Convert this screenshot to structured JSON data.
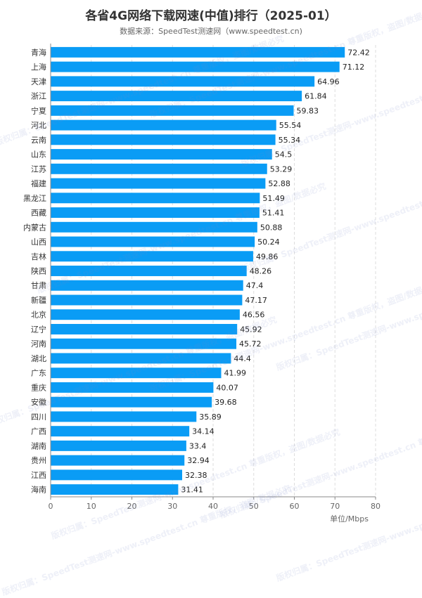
{
  "chart_data": {
    "type": "bar",
    "orientation": "horizontal",
    "title": "各省4G网络下载网速(中值)排行（2025-01）",
    "subtitle": "数据来源：SpeedTest测速网（www.speedtest.cn)",
    "unit_label": "单位/Mbps",
    "categories": [
      "青海",
      "上海",
      "天津",
      "浙江",
      "宁夏",
      "河北",
      "云南",
      "山东",
      "江苏",
      "福建",
      "黑龙江",
      "西藏",
      "内蒙古",
      "山西",
      "吉林",
      "陕西",
      "甘肃",
      "新疆",
      "北京",
      "辽宁",
      "河南",
      "湖北",
      "广东",
      "重庆",
      "安徽",
      "四川",
      "广西",
      "湖南",
      "贵州",
      "江西",
      "海南"
    ],
    "values": [
      72.42,
      71.12,
      64.96,
      61.84,
      59.83,
      55.54,
      55.34,
      54.5,
      53.29,
      52.88,
      51.49,
      51.41,
      50.88,
      50.24,
      49.86,
      48.26,
      47.4,
      47.17,
      46.56,
      45.92,
      45.72,
      44.4,
      41.99,
      40.07,
      39.68,
      35.89,
      34.14,
      33.4,
      32.94,
      32.38,
      31.41
    ],
    "value_labels": [
      "72.42",
      "71.12",
      "64.96",
      "61.84",
      "59.83",
      "55.54",
      "55.34",
      "54.5",
      "53.29",
      "52.88",
      "51.49",
      "51.41",
      "50.88",
      "50.24",
      "49.86",
      "48.26",
      "47.4",
      "47.17",
      "46.56",
      "45.92",
      "45.72",
      "44.4",
      "41.99",
      "40.07",
      "39.68",
      "35.89",
      "34.14",
      "33.4",
      "32.94",
      "32.38",
      "31.41"
    ],
    "xlim": [
      0,
      80
    ],
    "xticks": [
      "0",
      "10",
      "20",
      "30",
      "40",
      "50",
      "60",
      "70",
      "80"
    ],
    "grid": "vertical-dashed",
    "bar_color": "#0a9cf5"
  },
  "watermark": "版权归属：SpeedTest测速网-www.speedtest.cn 尊重版权，盗图/数据必究"
}
